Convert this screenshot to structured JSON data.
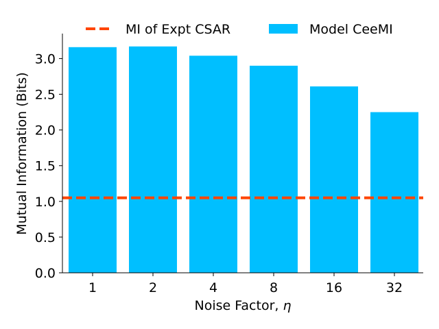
{
  "chart_data": {
    "type": "bar",
    "categories": [
      "1",
      "2",
      "4",
      "8",
      "16",
      "32"
    ],
    "series": [
      {
        "name": "Model CeeMI",
        "values": [
          3.16,
          3.17,
          3.04,
          2.9,
          2.61,
          2.25
        ],
        "color": "#00bfff"
      }
    ],
    "reference_line": {
      "name": "MI of Expt CSAR",
      "value": 1.05,
      "color": "#ff4500",
      "style": "dashed"
    },
    "xlabel_text": "Noise Factor, ",
    "xlabel_symbol": "η",
    "ylabel": "Mutual Information (Bits)",
    "ylim": [
      0,
      3.35
    ],
    "yticks": [
      "0.0",
      "0.5",
      "1.0",
      "1.5",
      "2.0",
      "2.5",
      "3.0"
    ],
    "grid": false,
    "legend_position": "top"
  }
}
